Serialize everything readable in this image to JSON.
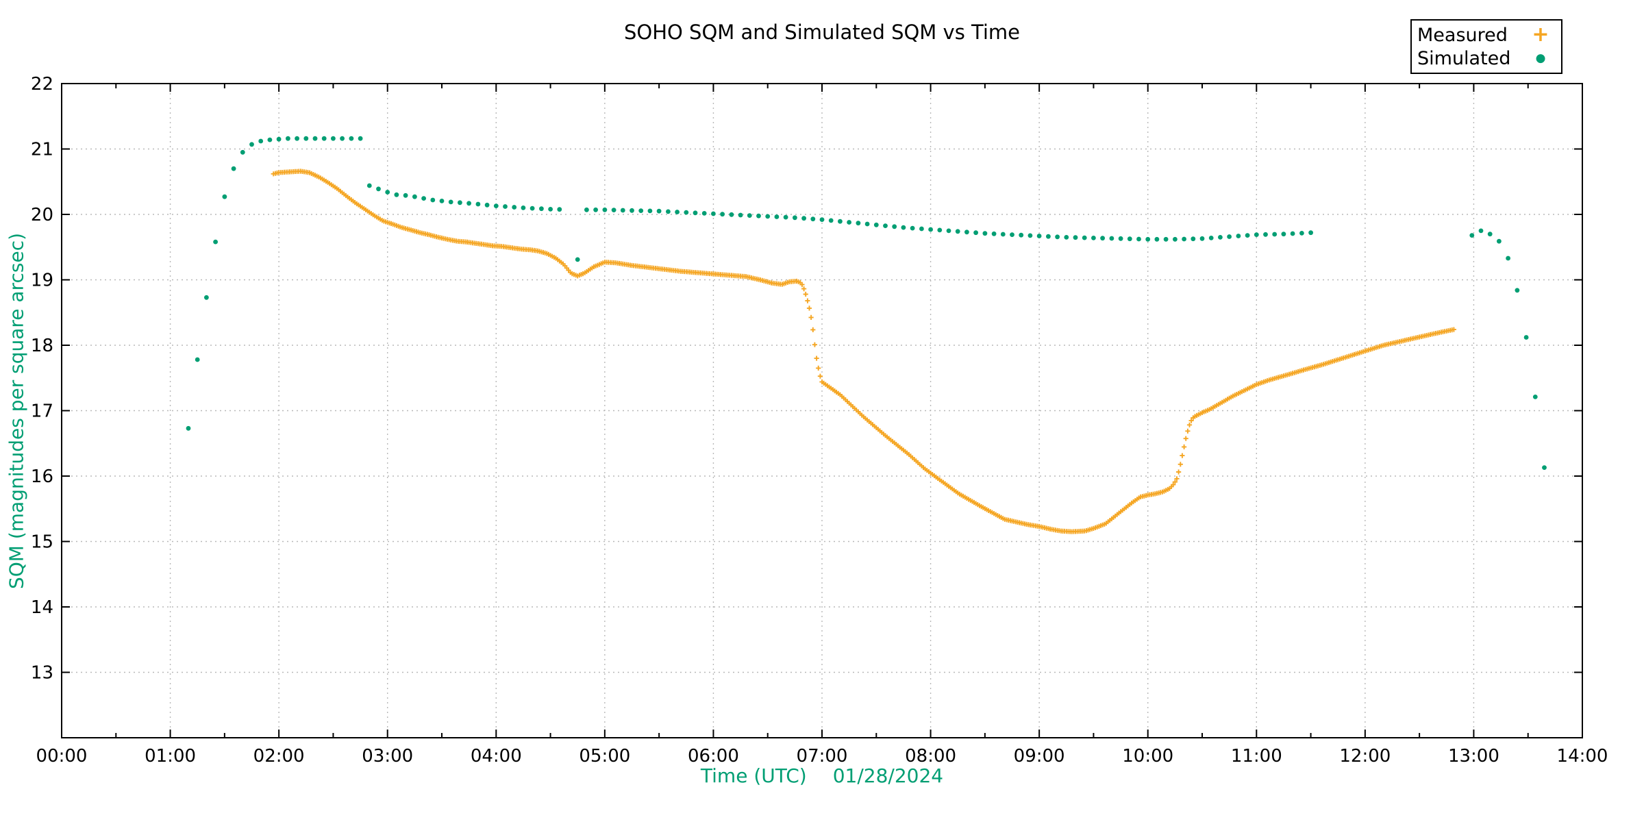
{
  "title": "SOHO SQM and Simulated SQM vs Time",
  "axes": {
    "x": {
      "title": "Time (UTC)",
      "date": "01/28/2024",
      "range_hours": [
        0,
        14
      ],
      "tick_labels": [
        "00:00",
        "01:00",
        "02:00",
        "03:00",
        "04:00",
        "05:00",
        "06:00",
        "07:00",
        "08:00",
        "09:00",
        "10:00",
        "11:00",
        "12:00",
        "13:00",
        "14:00"
      ],
      "minor_tick_every_hours": 0.5,
      "grid": "dotted"
    },
    "y": {
      "title": "SQM (magnitudes per square arcsec)",
      "range": [
        12,
        22
      ],
      "tick_values": [
        22,
        21,
        20,
        19,
        18,
        17,
        16,
        15,
        14,
        13
      ],
      "grid": "dotted"
    }
  },
  "legend": {
    "position": "top-right",
    "entries": [
      {
        "label": "Measured",
        "marker": "plus-icon",
        "marker_glyph": "+",
        "color": "#F5A623"
      },
      {
        "label": "Simulated",
        "marker": "dot-icon",
        "marker_glyph": "●",
        "color": "#009E73"
      }
    ]
  },
  "colors": {
    "measured": "#F5A623",
    "simulated": "#009E73",
    "axis_title_text": "#009E73",
    "tick_text": "#000000",
    "grid": "#b8b8b8",
    "frame": "#000000",
    "background": "#ffffff"
  },
  "chart_data": {
    "type": "scatter",
    "title": "SOHO SQM and Simulated SQM vs Time",
    "xlabel": "Time (UTC)   01/28/2024",
    "ylabel": "SQM (magnitudes per square arcsec)",
    "xlim_hours": [
      0,
      14
    ],
    "ylim": [
      12,
      22
    ],
    "grid": "dotted",
    "legend_position": "top-right-outside",
    "series": [
      {
        "name": "Measured",
        "marker": "plus",
        "color": "#F5A623",
        "cadence_minutes": 1,
        "segments": [
          {
            "start_h": 1.95,
            "end_h": 12.8167,
            "anchors": [
              [
                1.95,
                20.62
              ],
              [
                2.0,
                20.64
              ],
              [
                2.1,
                20.65
              ],
              [
                2.2,
                20.66
              ],
              [
                2.28,
                20.64
              ],
              [
                2.37,
                20.57
              ],
              [
                2.46,
                20.48
              ],
              [
                2.54,
                20.39
              ],
              [
                2.63,
                20.27
              ],
              [
                2.71,
                20.17
              ],
              [
                2.8,
                20.07
              ],
              [
                2.88,
                19.98
              ],
              [
                2.96,
                19.9
              ],
              [
                3.05,
                19.85
              ],
              [
                3.13,
                19.8
              ],
              [
                3.22,
                19.76
              ],
              [
                3.3,
                19.72
              ],
              [
                3.38,
                19.69
              ],
              [
                3.47,
                19.65
              ],
              [
                3.55,
                19.62
              ],
              [
                3.64,
                19.59
              ],
              [
                3.72,
                19.58
              ],
              [
                3.8,
                19.56
              ],
              [
                3.89,
                19.54
              ],
              [
                3.97,
                19.52
              ],
              [
                4.06,
                19.51
              ],
              [
                4.14,
                19.49
              ],
              [
                4.23,
                19.47
              ],
              [
                4.31,
                19.46
              ],
              [
                4.39,
                19.44
              ],
              [
                4.47,
                19.4
              ],
              [
                4.55,
                19.33
              ],
              [
                4.62,
                19.24
              ],
              [
                4.69,
                19.1
              ],
              [
                4.75,
                19.06
              ],
              [
                4.81,
                19.1
              ],
              [
                4.9,
                19.2
              ],
              [
                5.0,
                19.27
              ],
              [
                5.1,
                19.26
              ],
              [
                5.25,
                19.22
              ],
              [
                5.4,
                19.19
              ],
              [
                5.55,
                19.16
              ],
              [
                5.7,
                19.13
              ],
              [
                5.85,
                19.11
              ],
              [
                6.0,
                19.09
              ],
              [
                6.15,
                19.07
              ],
              [
                6.3,
                19.05
              ],
              [
                6.43,
                19.0
              ],
              [
                6.54,
                18.95
              ],
              [
                6.63,
                18.93
              ],
              [
                6.7,
                18.97
              ],
              [
                6.77,
                18.98
              ],
              [
                6.81,
                18.95
              ],
              [
                6.83,
                18.88
              ],
              [
                6.85,
                18.78
              ],
              [
                6.87,
                18.66
              ],
              [
                6.89,
                18.52
              ],
              [
                6.91,
                18.33
              ],
              [
                6.93,
                18.05
              ],
              [
                6.95,
                17.8
              ],
              [
                6.97,
                17.62
              ],
              [
                6.99,
                17.48
              ],
              [
                7.0,
                17.44
              ],
              [
                7.17,
                17.24
              ],
              [
                7.38,
                16.91
              ],
              [
                7.59,
                16.61
              ],
              [
                7.8,
                16.33
              ],
              [
                7.94,
                16.12
              ],
              [
                8.07,
                15.96
              ],
              [
                8.26,
                15.73
              ],
              [
                8.47,
                15.53
              ],
              [
                8.68,
                15.34
              ],
              [
                8.89,
                15.26
              ],
              [
                9.0,
                15.23
              ],
              [
                9.1,
                15.19
              ],
              [
                9.2,
                15.16
              ],
              [
                9.3,
                15.15
              ],
              [
                9.42,
                15.16
              ],
              [
                9.5,
                15.2
              ],
              [
                9.61,
                15.27
              ],
              [
                9.73,
                15.43
              ],
              [
                9.86,
                15.6
              ],
              [
                9.93,
                15.68
              ],
              [
                10.0,
                15.71
              ],
              [
                10.07,
                15.73
              ],
              [
                10.14,
                15.76
              ],
              [
                10.2,
                15.81
              ],
              [
                10.24,
                15.88
              ],
              [
                10.27,
                15.97
              ],
              [
                10.3,
                16.18
              ],
              [
                10.33,
                16.42
              ],
              [
                10.36,
                16.65
              ],
              [
                10.39,
                16.82
              ],
              [
                10.42,
                16.9
              ],
              [
                10.5,
                16.97
              ],
              [
                10.57,
                17.02
              ],
              [
                10.78,
                17.22
              ],
              [
                11.0,
                17.4
              ],
              [
                11.12,
                17.47
              ],
              [
                11.33,
                17.57
              ],
              [
                11.45,
                17.63
              ],
              [
                11.6,
                17.7
              ],
              [
                11.79,
                17.8
              ],
              [
                11.96,
                17.89
              ],
              [
                12.17,
                18.0
              ],
              [
                12.38,
                18.08
              ],
              [
                12.59,
                18.16
              ],
              [
                12.7,
                18.2
              ],
              [
                12.8167,
                18.24
              ]
            ]
          }
        ]
      },
      {
        "name": "Simulated",
        "marker": "dot",
        "color": "#009E73",
        "cadence_minutes": 5,
        "segments": [
          {
            "points": [
              [
                1.1667,
                16.73
              ],
              [
                1.25,
                17.78
              ],
              [
                1.3333,
                18.73
              ],
              [
                1.4167,
                19.58
              ],
              [
                1.5,
                20.27
              ],
              [
                1.5833,
                20.7
              ],
              [
                1.6667,
                20.95
              ],
              [
                1.75,
                21.07
              ],
              [
                1.8333,
                21.12
              ],
              [
                1.9167,
                21.14
              ],
              [
                2.0,
                21.15
              ],
              [
                2.0833,
                21.16
              ],
              [
                2.1667,
                21.16
              ],
              [
                2.25,
                21.16
              ],
              [
                2.3333,
                21.16
              ],
              [
                2.4167,
                21.16
              ],
              [
                2.5,
                21.16
              ],
              [
                2.5833,
                21.16
              ],
              [
                2.6667,
                21.16
              ],
              [
                2.75,
                21.16
              ]
            ]
          },
          {
            "start_h": 2.8333,
            "end_h": 11.5,
            "skip_h": [
              4.6667
            ],
            "overrides": [
              [
                4.75,
                19.31
              ]
            ],
            "anchors": [
              [
                2.8333,
                20.44
              ],
              [
                2.9167,
                20.39
              ],
              [
                3.0,
                20.34
              ],
              [
                3.0833,
                20.3
              ],
              [
                3.1667,
                20.29
              ],
              [
                3.25,
                20.27
              ],
              [
                3.4167,
                20.22
              ],
              [
                3.5833,
                20.19
              ],
              [
                3.75,
                20.17
              ],
              [
                4.0,
                20.13
              ],
              [
                4.25,
                20.1
              ],
              [
                4.5,
                20.08
              ],
              [
                4.75,
                20.07
              ],
              [
                5.0,
                20.07
              ],
              [
                5.25,
                20.06
              ],
              [
                5.5,
                20.05
              ],
              [
                5.75,
                20.03
              ],
              [
                6.0,
                20.01
              ],
              [
                6.25,
                19.99
              ],
              [
                6.5,
                19.97
              ],
              [
                6.75,
                19.95
              ],
              [
                7.0,
                19.92
              ],
              [
                7.25,
                19.88
              ],
              [
                7.5,
                19.84
              ],
              [
                7.75,
                19.8
              ],
              [
                8.0,
                19.77
              ],
              [
                8.25,
                19.74
              ],
              [
                8.5,
                19.71
              ],
              [
                8.75,
                19.69
              ],
              [
                9.0,
                19.67
              ],
              [
                9.25,
                19.65
              ],
              [
                9.5,
                19.64
              ],
              [
                9.75,
                19.63
              ],
              [
                10.0,
                19.62
              ],
              [
                10.25,
                19.62
              ],
              [
                10.5,
                19.63
              ],
              [
                10.75,
                19.66
              ],
              [
                11.0,
                19.69
              ],
              [
                11.25,
                19.7
              ],
              [
                11.5,
                19.72
              ]
            ]
          },
          {
            "points": [
              [
                12.9833,
                19.68
              ],
              [
                13.0667,
                19.75
              ],
              [
                13.15,
                19.7
              ],
              [
                13.2333,
                19.59
              ],
              [
                13.3167,
                19.33
              ],
              [
                13.4,
                18.84
              ],
              [
                13.4833,
                18.12
              ],
              [
                13.5667,
                17.21
              ],
              [
                13.65,
                16.13
              ]
            ]
          }
        ]
      }
    ]
  }
}
